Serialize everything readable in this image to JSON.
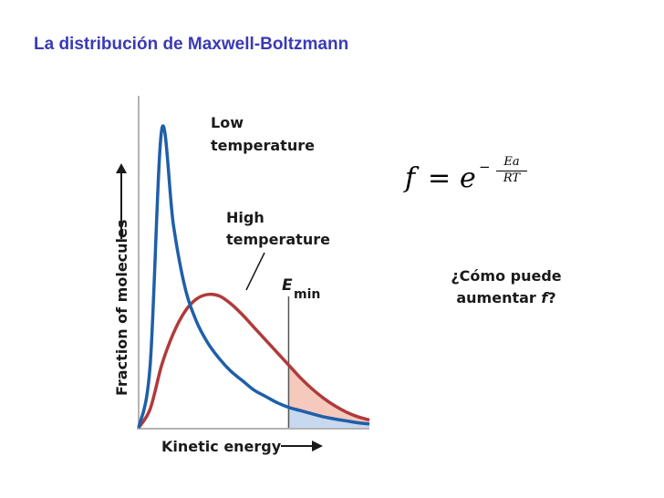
{
  "title": "La distribución de Maxwell-Boltzmann",
  "formula": {
    "lhs": "f",
    "equals": "=",
    "base": "e",
    "exp_sign": "−",
    "exp_numerator": "Ea",
    "exp_denominator": "RT"
  },
  "question": {
    "line1": "¿Cómo puede",
    "line2_prefix": "aumentar ",
    "line2_var": "f",
    "line2_suffix": "?"
  },
  "chart_data": {
    "type": "line",
    "xlabel": "Kinetic energy",
    "ylabel": "Fraction of molecules",
    "grid": false,
    "series": [
      {
        "name": "Low temperature",
        "color": "#1f5fa8",
        "x": [
          0,
          0.05,
          0.1,
          0.15,
          0.2,
          0.25,
          0.3,
          0.35,
          0.4,
          0.45,
          0.5,
          0.55,
          0.6,
          0.65,
          0.7,
          0.75,
          0.8,
          0.85,
          0.9,
          0.95,
          1.0
        ],
        "values": [
          0,
          0.2,
          0.95,
          0.65,
          0.45,
          0.34,
          0.27,
          0.22,
          0.18,
          0.15,
          0.12,
          0.1,
          0.08,
          0.065,
          0.055,
          0.045,
          0.035,
          0.028,
          0.022,
          0.016,
          0.012
        ]
      },
      {
        "name": "High temperature",
        "color": "#b03a3a",
        "x": [
          0,
          0.05,
          0.1,
          0.15,
          0.2,
          0.25,
          0.3,
          0.35,
          0.4,
          0.45,
          0.5,
          0.55,
          0.6,
          0.65,
          0.7,
          0.75,
          0.8,
          0.85,
          0.9,
          0.95,
          1.0
        ],
        "values": [
          0,
          0.06,
          0.2,
          0.3,
          0.37,
          0.41,
          0.425,
          0.42,
          0.395,
          0.36,
          0.32,
          0.28,
          0.24,
          0.2,
          0.16,
          0.125,
          0.095,
          0.07,
          0.05,
          0.035,
          0.025
        ]
      }
    ],
    "emin": {
      "label_main": "E",
      "label_sub": "min",
      "x": 0.65
    },
    "annotations": {
      "low_line1": "Low",
      "low_line2": "temperature",
      "high_line1": "High",
      "high_line2": "temperature"
    },
    "shade_colors": {
      "high": "#f6c9bd",
      "low": "#c8d8ef"
    }
  }
}
